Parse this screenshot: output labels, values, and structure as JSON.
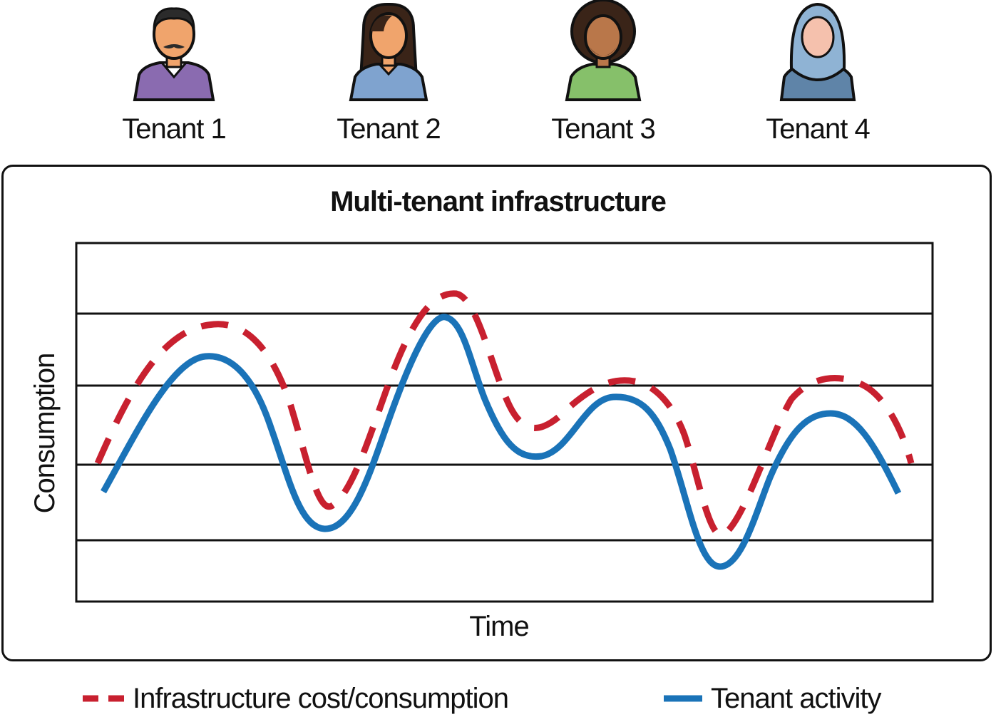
{
  "tenants": [
    {
      "label": "Tenant 1",
      "icon": "man-mustache-avatar-icon",
      "shirt": "#8a6bb0",
      "skin": "#f0a46c",
      "hair": "#2b2b2b"
    },
    {
      "label": "Tenant 2",
      "icon": "woman-long-hair-avatar-icon",
      "shirt": "#7fa3cf",
      "skin": "#f0a46c",
      "hair": "#3a2418"
    },
    {
      "label": "Tenant 3",
      "icon": "man-curly-hair-beard-avatar-icon",
      "shirt": "#86c06a",
      "skin": "#b9774a",
      "hair": "#3a2418"
    },
    {
      "label": "Tenant 4",
      "icon": "woman-hijab-avatar-icon",
      "shirt": "#5f84a8",
      "skin": "#f5c1ad",
      "hair": "#8fb3d4"
    }
  ],
  "diagram": {
    "title": "Multi-tenant infrastructure",
    "xlabel": "Time",
    "ylabel": "Consumption"
  },
  "legend": {
    "cost_label": "Infrastructure cost/consumption",
    "activity_label": "Tenant activity"
  },
  "colors": {
    "cost": "#c8202f",
    "activity": "#1a73b8",
    "outline": "#111111"
  }
}
